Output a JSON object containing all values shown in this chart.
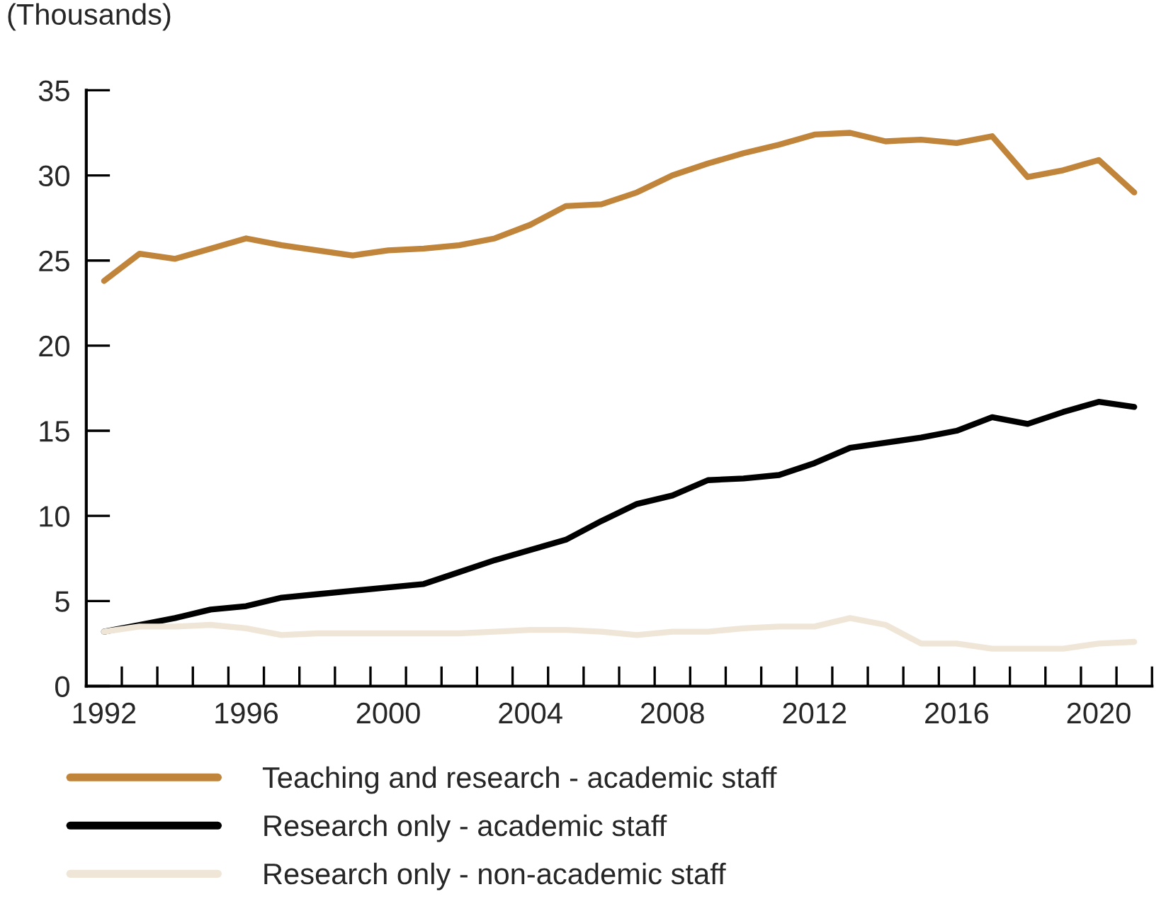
{
  "chart_data": {
    "type": "line",
    "ylabel": "(Thousands)",
    "x": [
      1992,
      1993,
      1994,
      1995,
      1996,
      1997,
      1998,
      1999,
      2000,
      2001,
      2002,
      2003,
      2004,
      2005,
      2006,
      2007,
      2008,
      2009,
      2010,
      2011,
      2012,
      2013,
      2014,
      2015,
      2016,
      2017,
      2018,
      2019,
      2020,
      2021
    ],
    "series": [
      {
        "name": "Teaching and research - academic staff",
        "color": "#c0853a",
        "values": [
          23.8,
          25.4,
          25.1,
          25.7,
          26.3,
          25.9,
          25.6,
          25.3,
          25.6,
          25.7,
          25.9,
          26.3,
          27.1,
          28.2,
          28.3,
          29.0,
          30.0,
          30.7,
          31.3,
          31.8,
          32.4,
          32.5,
          32.0,
          32.1,
          31.9,
          32.3,
          29.9,
          30.3,
          30.9,
          29.0
        ]
      },
      {
        "name": "Research only - academic staff",
        "color": "#000000",
        "values": [
          3.2,
          3.6,
          4.0,
          4.5,
          4.7,
          5.2,
          5.4,
          5.6,
          5.8,
          6.0,
          6.7,
          7.4,
          8.0,
          8.6,
          9.7,
          10.7,
          11.2,
          12.1,
          12.2,
          12.4,
          13.1,
          14.0,
          14.3,
          14.6,
          15.0,
          15.8,
          15.4,
          16.1,
          16.7,
          16.4
        ]
      },
      {
        "name": "Research only - non-academic staff",
        "color": "#f0e6d8",
        "values": [
          3.2,
          3.5,
          3.5,
          3.6,
          3.4,
          3.0,
          3.1,
          3.1,
          3.1,
          3.1,
          3.1,
          3.2,
          3.3,
          3.3,
          3.2,
          3.0,
          3.2,
          3.2,
          3.4,
          3.5,
          3.5,
          4.0,
          3.6,
          2.5,
          2.5,
          2.2,
          2.2,
          2.2,
          2.5,
          2.6
        ]
      }
    ],
    "xlim": [
      1991.5,
      2021.5
    ],
    "xticks": [
      {
        "value": 1992,
        "label": "1992"
      },
      {
        "value": 1996,
        "label": "1996"
      },
      {
        "value": 2000,
        "label": "2000"
      },
      {
        "value": 2004,
        "label": "2004"
      },
      {
        "value": 2008,
        "label": "2008"
      },
      {
        "value": 2012,
        "label": "2012"
      },
      {
        "value": 2016,
        "label": "2016"
      },
      {
        "value": 2020,
        "label": "2020"
      },
      {
        "value": 1992.5,
        "label": null
      },
      {
        "value": 1993.5,
        "label": null
      },
      {
        "value": 1994.5,
        "label": null
      },
      {
        "value": 1995.5,
        "label": null
      },
      {
        "value": 1996.5,
        "label": null
      },
      {
        "value": 1997.5,
        "label": null
      },
      {
        "value": 1998.5,
        "label": null
      },
      {
        "value": 1999.5,
        "label": null
      },
      {
        "value": 2000.5,
        "label": null
      },
      {
        "value": 2001.5,
        "label": null
      },
      {
        "value": 2002.5,
        "label": null
      },
      {
        "value": 2003.5,
        "label": null
      },
      {
        "value": 2004.5,
        "label": null
      },
      {
        "value": 2005.5,
        "label": null
      },
      {
        "value": 2006.5,
        "label": null
      },
      {
        "value": 2007.5,
        "label": null
      },
      {
        "value": 2008.5,
        "label": null
      },
      {
        "value": 2009.5,
        "label": null
      },
      {
        "value": 2010.5,
        "label": null
      },
      {
        "value": 2011.5,
        "label": null
      },
      {
        "value": 2012.5,
        "label": null
      },
      {
        "value": 2013.5,
        "label": null
      },
      {
        "value": 2014.5,
        "label": null
      },
      {
        "value": 2015.5,
        "label": null
      },
      {
        "value": 2016.5,
        "label": null
      },
      {
        "value": 2017.5,
        "label": null
      },
      {
        "value": 2018.5,
        "label": null
      },
      {
        "value": 2019.5,
        "label": null
      },
      {
        "value": 2020.5,
        "label": null
      },
      {
        "value": 2021.5,
        "label": null
      }
    ],
    "ylim": [
      0,
      35
    ],
    "yticks": [
      0,
      5,
      10,
      15,
      20,
      25,
      30,
      35
    ],
    "grid": false,
    "legend": "bottom",
    "marker": "none",
    "line_style": "solid"
  }
}
